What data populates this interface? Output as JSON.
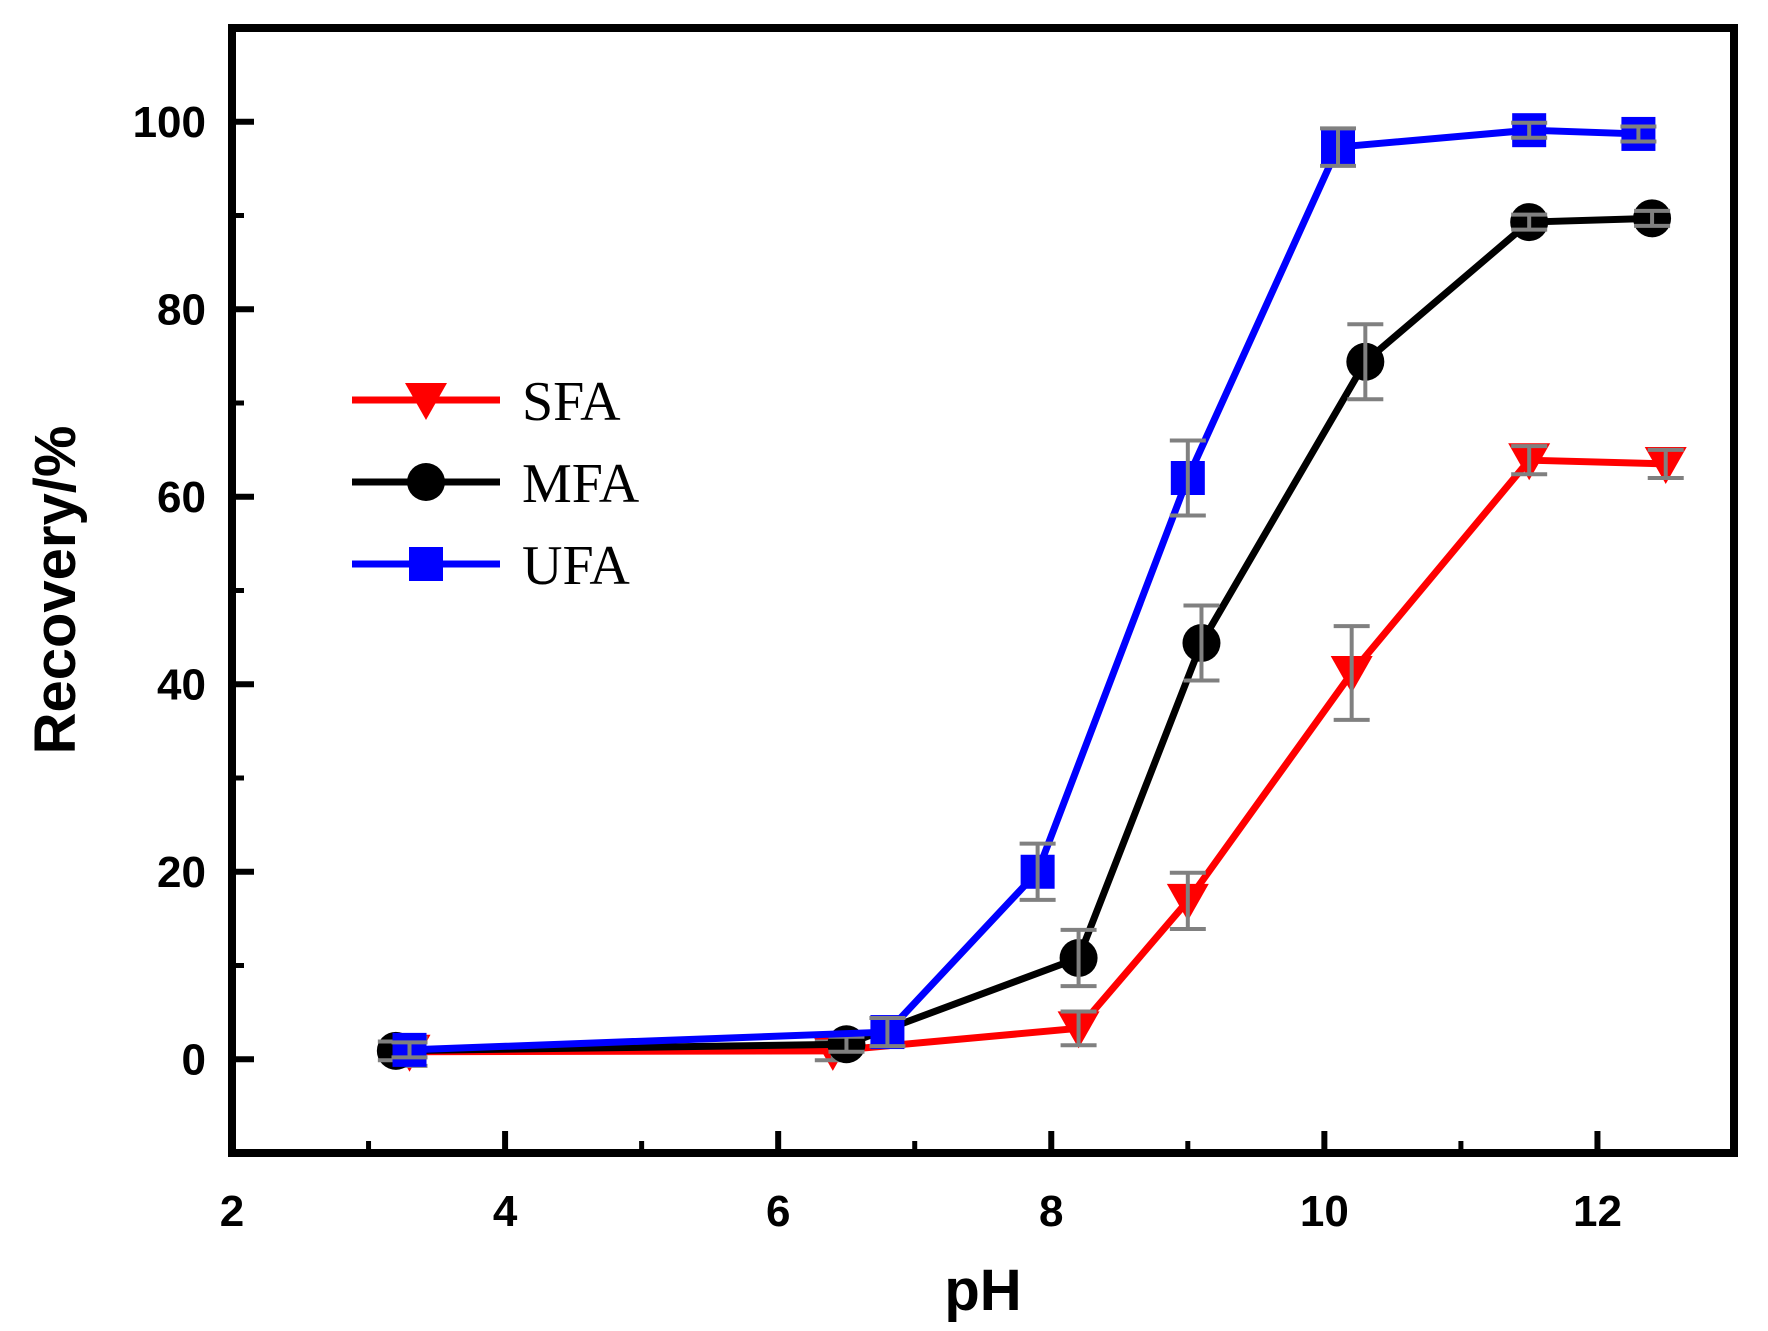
{
  "chart_data": {
    "type": "line",
    "title": "",
    "xlabel": "pH",
    "ylabel": "Recovery/%",
    "xlim": [
      2,
      13
    ],
    "ylim": [
      -10,
      110
    ],
    "x_ticks": [
      2,
      4,
      6,
      8,
      10,
      12
    ],
    "y_ticks": [
      0,
      20,
      40,
      60,
      80,
      100
    ],
    "legend_position": "upper-left",
    "error_bar_color": "#808080",
    "series": [
      {
        "name": "SFA",
        "color": "#ff0000",
        "marker": "triangle-down",
        "x": [
          3.3,
          6.4,
          8.2,
          9.0,
          10.2,
          11.5,
          12.5
        ],
        "y": [
          0.8,
          0.9,
          3.3,
          16.9,
          41.2,
          63.9,
          63.5
        ],
        "err": [
          1.5,
          1.0,
          1.8,
          3.0,
          5.0,
          1.5,
          1.5
        ]
      },
      {
        "name": "MFA",
        "color": "#000000",
        "marker": "circle",
        "x": [
          3.2,
          6.5,
          8.2,
          9.1,
          10.3,
          11.5,
          12.4
        ],
        "y": [
          0.9,
          1.6,
          10.8,
          44.4,
          74.4,
          89.3,
          89.7
        ],
        "err": [
          1.0,
          0.8,
          3.0,
          4.0,
          4.0,
          0.8,
          0.8
        ]
      },
      {
        "name": "UFA",
        "color": "#0000ff",
        "marker": "square",
        "x": [
          3.3,
          6.8,
          7.9,
          9.0,
          10.1,
          11.5,
          12.3
        ],
        "y": [
          1.0,
          2.9,
          20.0,
          62.0,
          97.3,
          99.1,
          98.7
        ],
        "err": [
          0.8,
          1.5,
          3.0,
          4.0,
          2.0,
          0.8,
          0.8
        ]
      }
    ]
  }
}
